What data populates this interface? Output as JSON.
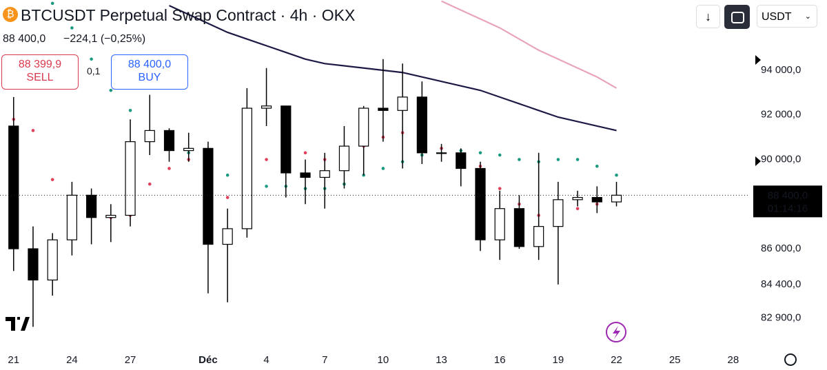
{
  "header": {
    "title": "BTCUSDT Perpetual Swap Contract · 4h · OKX",
    "price": "88 400,0",
    "change": "−224,1 (−0,25%)",
    "sell_price": "88 399,9",
    "sell_label": "SELL",
    "quantity": "0,1",
    "buy_price": "88 400,0",
    "buy_label": "BUY",
    "currency": "USDT"
  },
  "chart_data": {
    "type": "candlestick",
    "x": [
      0,
      1,
      2,
      3,
      4,
      5,
      6,
      7,
      8,
      9,
      10,
      11,
      12,
      13,
      14,
      15,
      16,
      17,
      18,
      19,
      20,
      21,
      22,
      23,
      24,
      25,
      26,
      27,
      28,
      29,
      30,
      31
    ],
    "open": [
      91500,
      86000,
      84600,
      86400,
      88400,
      87400,
      87500,
      90800,
      91300,
      90400,
      90500,
      86200,
      86900,
      92300,
      92400,
      89400,
      89200,
      89500,
      90600,
      92300,
      92200,
      92800,
      90300,
      90300,
      89600,
      86400,
      87800,
      86100,
      87000,
      88200,
      88300,
      88100
    ],
    "high": [
      92800,
      87000,
      86700,
      89000,
      88700,
      88000,
      91800,
      92900,
      91400,
      91200,
      90800,
      87800,
      93200,
      94100,
      92400,
      90000,
      90300,
      91500,
      92400,
      94500,
      94300,
      93500,
      90700,
      90500,
      89900,
      88600,
      88400,
      90300,
      89000,
      88600,
      88800,
      89000
    ],
    "low": [
      85000,
      82500,
      83900,
      85700,
      86200,
      86300,
      87000,
      90200,
      89900,
      89900,
      84000,
      83600,
      86500,
      91500,
      88300,
      88000,
      87800,
      88700,
      89300,
      90800,
      89600,
      89800,
      89900,
      88800,
      85900,
      85500,
      86000,
      85500,
      84400,
      87900,
      87600,
      87900
    ],
    "close": [
      86000,
      84600,
      86400,
      88400,
      87400,
      87500,
      90800,
      91300,
      90400,
      90500,
      86200,
      86900,
      92300,
      92400,
      89400,
      89200,
      89500,
      90600,
      92300,
      92200,
      92800,
      90300,
      90300,
      89600,
      86400,
      87800,
      86100,
      87000,
      88200,
      88300,
      88100,
      88400
    ],
    "series": [
      {
        "color": "#1c1a45",
        "style": "line",
        "values": [
          null,
          null,
          null,
          null,
          null,
          null,
          null,
          null,
          96900,
          96500,
          96100,
          95700,
          95400,
          95100,
          94800,
          94500,
          94300,
          94200,
          94100,
          94000,
          93900,
          93700,
          93500,
          93300,
          93100,
          92800,
          92500,
          92200,
          91900,
          91700,
          91500,
          91300
        ]
      },
      {
        "color": "#e8a3bd",
        "style": "line",
        "values": [
          null,
          null,
          null,
          null,
          null,
          null,
          null,
          null,
          null,
          null,
          null,
          null,
          null,
          null,
          null,
          null,
          null,
          null,
          null,
          null,
          null,
          null,
          97100,
          96700,
          96300,
          95900,
          95400,
          94900,
          94500,
          94100,
          93700,
          93200
        ]
      },
      {
        "color": "#1a9a80",
        "style": "dots",
        "values": [
          null,
          null,
          97000,
          95900,
          94500,
          93100,
          92200,
          91000,
          90500,
          90300,
          89900,
          89300,
          88800,
          88800,
          88800,
          88700,
          88700,
          88900,
          89300,
          89600,
          89900,
          90200,
          90500,
          90400,
          90300,
          90200,
          90000,
          89900,
          90000,
          90000,
          89700,
          89300
        ]
      },
      {
        "color": "#e0405a",
        "style": "dots",
        "values": [
          91800,
          91300,
          89100,
          87700,
          87500,
          87400,
          87500,
          88900,
          89600,
          90000,
          89700,
          88300,
          88700,
          90000,
          90500,
          90300,
          90000,
          90200,
          90600,
          91000,
          91200,
          91200,
          90500,
          90100,
          89700,
          88700,
          88000,
          87500,
          87500,
          87800,
          88000,
          88200
        ]
      }
    ],
    "xlim": [
      -0.7,
      37.75
    ],
    "ylim": [
      81400,
      97150
    ],
    "xticks": [
      {
        "value": 0,
        "label": "21"
      },
      {
        "value": 3,
        "label": "24"
      },
      {
        "value": 6,
        "label": "27"
      },
      {
        "value": 10,
        "label": "Déc"
      },
      {
        "value": 13,
        "label": "4"
      },
      {
        "value": 16,
        "label": "7"
      },
      {
        "value": 19,
        "label": "10"
      },
      {
        "value": 22,
        "label": "13"
      },
      {
        "value": 25,
        "label": "16"
      },
      {
        "value": 28,
        "label": "19"
      },
      {
        "value": 31,
        "label": "22"
      },
      {
        "value": 34,
        "label": "25"
      },
      {
        "value": 37,
        "label": "28"
      }
    ],
    "yticks": [
      {
        "value": 94000,
        "label": "94 000,0"
      },
      {
        "value": 92000,
        "label": "92 000,0"
      },
      {
        "value": 90000,
        "label": "90 000,0"
      },
      {
        "value": 86000,
        "label": "86 000,0"
      },
      {
        "value": 84400,
        "label": "84 400,0"
      },
      {
        "value": 82900,
        "label": "82 900,0"
      }
    ],
    "last_price": {
      "value": 88400,
      "label": "88 400,0"
    },
    "countdown": "01:14:16"
  }
}
